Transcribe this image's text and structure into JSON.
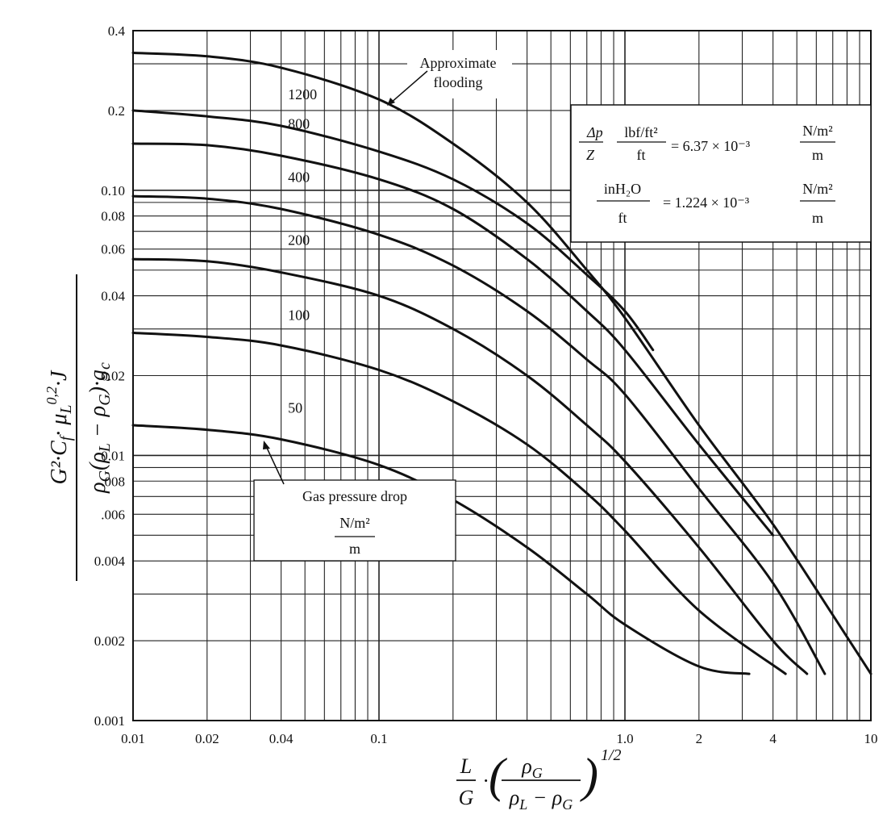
{
  "chart_data": {
    "type": "line",
    "title": "",
    "x_scale": "log",
    "y_scale": "log",
    "xlim": [
      0.01,
      10
    ],
    "ylim": [
      0.001,
      0.4
    ],
    "xlabel": "L/G · (ρG/(ρL − ρG))^1/2",
    "ylabel": "G²·Cf·μL^0.2·J / (ρG(ρL − ρG)·gc)",
    "x_ticks": [
      {
        "value": 0.01,
        "label": "0.01"
      },
      {
        "value": 0.02,
        "label": "0.02"
      },
      {
        "value": 0.04,
        "label": "0.04"
      },
      {
        "value": 0.1,
        "label": "0.1"
      },
      {
        "value": 1.0,
        "label": "1.0"
      },
      {
        "value": 2,
        "label": "2"
      },
      {
        "value": 4,
        "label": "4"
      },
      {
        "value": 10,
        "label": "10"
      }
    ],
    "y_ticks": [
      {
        "value": 0.001,
        "label": "0.001"
      },
      {
        "value": 0.002,
        "label": "0.002"
      },
      {
        "value": 0.004,
        "label": "0.004"
      },
      {
        "value": 0.006,
        "label": ".006"
      },
      {
        "value": 0.008,
        "label": ".008"
      },
      {
        "value": 0.01,
        "label": "0.01"
      },
      {
        "value": 0.02,
        "label": "0.02"
      },
      {
        "value": 0.04,
        "label": "0.04"
      },
      {
        "value": 0.06,
        "label": "0.06"
      },
      {
        "value": 0.08,
        "label": "0.08"
      },
      {
        "value": 0.1,
        "label": "0.10"
      },
      {
        "value": 0.2,
        "label": "0.2"
      },
      {
        "value": 0.4,
        "label": "0.4"
      }
    ],
    "series": [
      {
        "name": "Approximate flooding",
        "label": "",
        "x": [
          0.01,
          0.02,
          0.04,
          0.1,
          0.2,
          0.4,
          0.7,
          1.0,
          2.0,
          4.0,
          7.0,
          10.0
        ],
        "y": [
          0.33,
          0.32,
          0.29,
          0.22,
          0.15,
          0.09,
          0.05,
          0.033,
          0.013,
          0.0055,
          0.0025,
          0.0015
        ]
      },
      {
        "name": "1200",
        "label": "1200",
        "x": [
          0.01,
          0.02,
          0.04,
          0.1,
          0.2,
          0.4,
          0.7,
          1.0,
          1.3
        ],
        "y": [
          0.2,
          0.19,
          0.175,
          0.14,
          0.11,
          0.075,
          0.048,
          0.035,
          0.025
        ]
      },
      {
        "name": "800",
        "label": "800",
        "x": [
          0.01,
          0.02,
          0.04,
          0.1,
          0.2,
          0.4,
          0.7,
          1.0,
          2.0,
          4.0
        ],
        "y": [
          0.15,
          0.148,
          0.135,
          0.11,
          0.085,
          0.055,
          0.035,
          0.025,
          0.011,
          0.005
        ]
      },
      {
        "name": "400",
        "label": "400",
        "x": [
          0.01,
          0.02,
          0.04,
          0.1,
          0.2,
          0.4,
          0.7,
          1.0,
          2.0,
          4.0,
          6.5
        ],
        "y": [
          0.095,
          0.093,
          0.085,
          0.068,
          0.052,
          0.035,
          0.023,
          0.017,
          0.0075,
          0.0033,
          0.0015
        ]
      },
      {
        "name": "200",
        "label": "200",
        "x": [
          0.01,
          0.02,
          0.04,
          0.1,
          0.2,
          0.4,
          0.7,
          1.0,
          2.0,
          4.0,
          5.5
        ],
        "y": [
          0.055,
          0.054,
          0.049,
          0.04,
          0.03,
          0.02,
          0.013,
          0.0095,
          0.0045,
          0.002,
          0.0015
        ]
      },
      {
        "name": "100",
        "label": "100",
        "x": [
          0.01,
          0.02,
          0.04,
          0.1,
          0.2,
          0.4,
          0.7,
          1.0,
          2.0,
          4.5
        ],
        "y": [
          0.029,
          0.028,
          0.026,
          0.021,
          0.016,
          0.011,
          0.0072,
          0.0052,
          0.0026,
          0.0015
        ]
      },
      {
        "name": "50",
        "label": "50",
        "x": [
          0.01,
          0.02,
          0.04,
          0.1,
          0.2,
          0.4,
          0.7,
          1.0,
          2.0,
          3.2
        ],
        "y": [
          0.013,
          0.0125,
          0.0115,
          0.0092,
          0.0068,
          0.0045,
          0.003,
          0.0023,
          0.0016,
          0.0015
        ]
      }
    ],
    "annotations": {
      "flooding_line1": "Approximate",
      "flooding_line2": "flooding",
      "pressure_title": "Gas pressure drop",
      "pressure_unit_num": "N/m²",
      "pressure_unit_den": "m",
      "conv1": {
        "lhs_num": "Δp",
        "lhs_den": "Z",
        "unit_num": "lbf/ft²",
        "unit_den": "ft",
        "eq": "= 6.37 × 10⁻³",
        "si_num": "N/m²",
        "si_den": "m"
      },
      "conv2": {
        "unit_num": "inH₂O",
        "unit_den": "ft",
        "eq": "= 1.224 × 10⁻³",
        "si_num": "N/m²",
        "si_den": "m"
      }
    }
  }
}
